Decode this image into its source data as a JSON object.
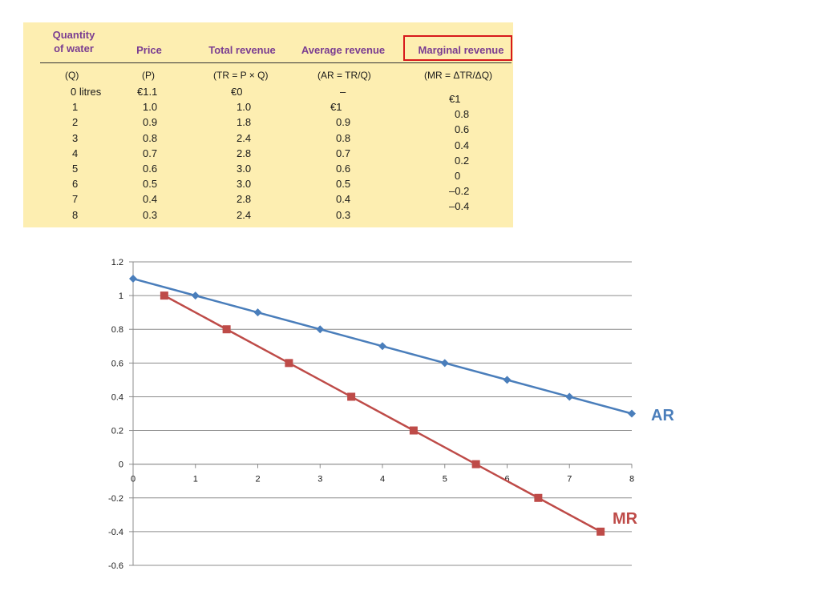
{
  "table": {
    "headers": {
      "quantity": [
        "Quantity",
        "of water"
      ],
      "price": "Price",
      "total_revenue": "Total revenue",
      "average_revenue": "Average revenue",
      "marginal_revenue": "Marginal revenue"
    },
    "formulas": {
      "quantity": "(Q)",
      "price": "(P)",
      "total_revenue": "(TR = P × Q)",
      "average_revenue": "(AR = TR/Q)",
      "marginal_revenue": "(MR = ΔTR/ΔQ)"
    },
    "rows": [
      {
        "q": "0 litres",
        "p": "€1.1",
        "tr": "€0",
        "ar": "–"
      },
      {
        "q": "1",
        "p": "1.0",
        "tr": "1.0",
        "ar": "€1"
      },
      {
        "q": "2",
        "p": "0.9",
        "tr": "1.8",
        "ar": "0.9"
      },
      {
        "q": "3",
        "p": "0.8",
        "tr": "2.4",
        "ar": "0.8"
      },
      {
        "q": "4",
        "p": "0.7",
        "tr": "2.8",
        "ar": "0.7"
      },
      {
        "q": "5",
        "p": "0.6",
        "tr": "3.0",
        "ar": "0.6"
      },
      {
        "q": "6",
        "p": "0.5",
        "tr": "3.0",
        "ar": "0.5"
      },
      {
        "q": "7",
        "p": "0.4",
        "tr": "2.8",
        "ar": "0.4"
      },
      {
        "q": "8",
        "p": "0.3",
        "tr": "2.4",
        "ar": "0.3"
      }
    ],
    "marginal_values": [
      "€1",
      "0.8",
      "0.6",
      "0.4",
      "0.2",
      "0",
      "–0.2",
      "–0.4"
    ],
    "colors": {
      "background": "#fdeeb1",
      "header_text": "#7a3d91",
      "highlight": "#d7191c"
    }
  },
  "chart_data": {
    "type": "line",
    "xlim": [
      0,
      8
    ],
    "ylim": [
      -0.6,
      1.2
    ],
    "xticks": [
      0,
      1,
      2,
      3,
      4,
      5,
      6,
      7,
      8
    ],
    "yticks": [
      1.2,
      1,
      0.8,
      0.6,
      0.4,
      0.2,
      0,
      -0.2,
      -0.4,
      -0.6
    ],
    "xtick_labels": [
      "0",
      "1",
      "2",
      "3",
      "4",
      "5",
      "6",
      "7",
      "8"
    ],
    "ytick_labels": [
      "1.2",
      "1",
      "0.8",
      "0.6",
      "0.4",
      "0.2",
      "0",
      "-0.2",
      "-0.4",
      "-0.6"
    ],
    "grid": true,
    "series": [
      {
        "name": "AR",
        "color": "#4a7ebb",
        "marker": "diamond",
        "x": [
          0,
          1,
          2,
          3,
          4,
          5,
          6,
          7,
          8
        ],
        "y": [
          1.1,
          1.0,
          0.9,
          0.8,
          0.7,
          0.6,
          0.5,
          0.4,
          0.3
        ]
      },
      {
        "name": "MR",
        "color": "#be4b48",
        "marker": "square",
        "x": [
          0.5,
          1.5,
          2.5,
          3.5,
          4.5,
          5.5,
          6.5,
          7.5
        ],
        "y": [
          1.0,
          0.8,
          0.6,
          0.4,
          0.2,
          0,
          -0.2,
          -0.4
        ]
      }
    ]
  }
}
